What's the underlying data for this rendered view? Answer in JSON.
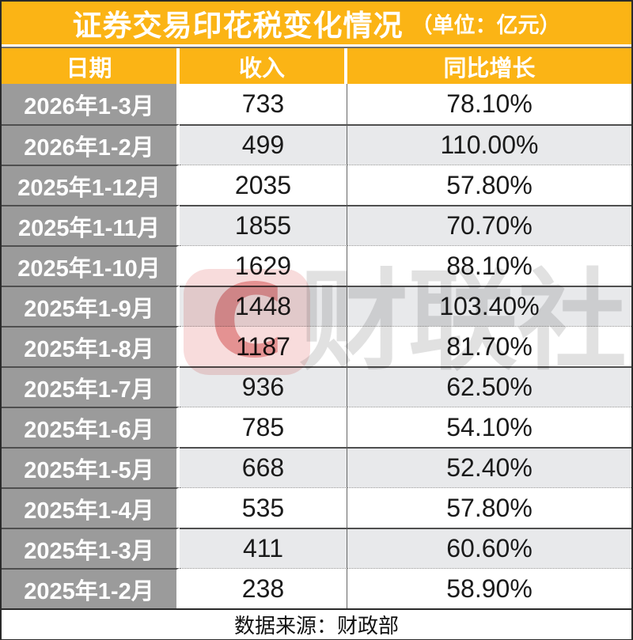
{
  "title": {
    "main": "证券交易印花税变化情况",
    "unit": "（单位：亿元）"
  },
  "chart_data": {
    "type": "table",
    "title": "证券交易印花税变化情况",
    "unit_label": "（单位：亿元）",
    "columns": [
      "日期",
      "收入",
      "同比增长"
    ],
    "rows": [
      [
        "2026年1-3月",
        "733",
        "78.10%"
      ],
      [
        "2026年1-2月",
        "499",
        "110.00%"
      ],
      [
        "2025年1-12月",
        "2035",
        "57.80%"
      ],
      [
        "2025年1-11月",
        "1855",
        "70.70%"
      ],
      [
        "2025年1-10月",
        "1629",
        "88.10%"
      ],
      [
        "2025年1-9月",
        "1448",
        "103.40%"
      ],
      [
        "2025年1-8月",
        "1187",
        "81.70%"
      ],
      [
        "2025年1-7月",
        "936",
        "62.50%"
      ],
      [
        "2025年1-6月",
        "785",
        "54.10%"
      ],
      [
        "2025年1-5月",
        "668",
        "52.40%"
      ],
      [
        "2025年1-4月",
        "535",
        "57.80%"
      ],
      [
        "2025年1-3月",
        "411",
        "60.60%"
      ],
      [
        "2025年1-2月",
        "238",
        "58.90%"
      ]
    ],
    "source": "数据来源：财政部"
  },
  "footer": {
    "source": "数据来源：财政部"
  },
  "watermark": {
    "logo_letter": "C",
    "text": "财联社"
  },
  "colors": {
    "header_orange": "#FBB415",
    "date_column_gray": "#9B9B9B",
    "row_shade_gray": "#E8E9EB",
    "row_white": "#FFFFFF",
    "outer_border": "#2A2A2A",
    "header_text": "#FFFFFF",
    "data_text": "#1A1A1A",
    "watermark_red": "rgba(205,55,55,0.45)",
    "watermark_gray": "rgba(120,120,120,0.22)"
  }
}
